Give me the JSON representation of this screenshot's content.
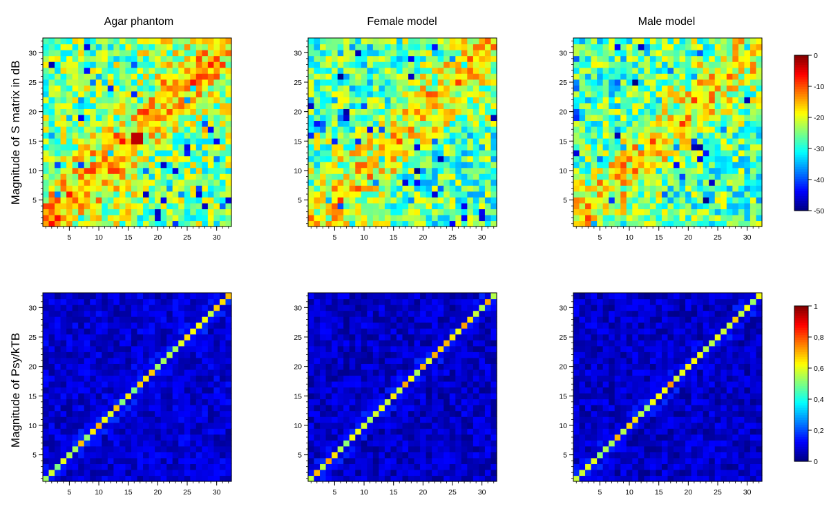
{
  "chart_data": {
    "type": "heatmap",
    "grid_size": 32,
    "column_titles": [
      "Agar phantom",
      "Female model",
      "Male model"
    ],
    "row_labels": [
      "Magnitude of S matrix in dB",
      "Magnitude of Psy/kTB"
    ],
    "axis_ticks": [
      "5",
      "10",
      "15",
      "20",
      "25",
      "30"
    ],
    "axis_range": [
      1,
      32
    ],
    "colormap": "jet",
    "rows": [
      {
        "name": "S-matrix magnitude (dB)",
        "colorbar": {
          "min": -50,
          "max": 0,
          "ticks": [
            "0",
            "-10",
            "-20",
            "-30",
            "-40",
            "-50"
          ]
        },
        "panels": [
          {
            "title": "Agar phantom",
            "diagonal": -15,
            "background_mean": -25,
            "hotspot": {
              "x": [
                16,
                17
              ],
              "y": [
                15,
                16
              ],
              "value": -3
            }
          },
          {
            "title": "Female model",
            "diagonal": -18,
            "background_mean": -27
          },
          {
            "title": "Male model",
            "diagonal": -18,
            "background_mean": -27
          }
        ]
      },
      {
        "name": "Psy/kTB magnitude",
        "colorbar": {
          "min": 0,
          "max": 1,
          "ticks": [
            "1",
            "0,8",
            "0,6",
            "0,4",
            "0,2",
            "0"
          ]
        },
        "panels": [
          {
            "title": "Agar phantom",
            "diagonal": 0.6,
            "background_mean": 0.08
          },
          {
            "title": "Female model",
            "diagonal": 0.62,
            "background_mean": 0.07
          },
          {
            "title": "Male model",
            "diagonal": 0.62,
            "background_mean": 0.07
          }
        ]
      }
    ]
  }
}
